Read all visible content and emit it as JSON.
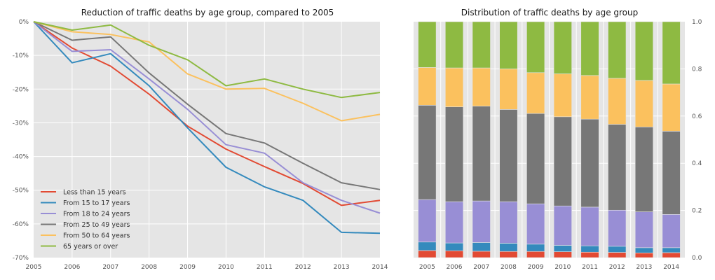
{
  "colors": {
    "plot_bg": "#e5e5e5",
    "grid": "#ffffff",
    "series": [
      "#e24a33",
      "#348abd",
      "#988ed5",
      "#777777",
      "#fbc15e",
      "#8eba42"
    ]
  },
  "chart_data": [
    {
      "type": "line",
      "title": "Reduction of traffic deaths by age group, compared to 2005",
      "x": [
        "2005",
        "2006",
        "2007",
        "2008",
        "2009",
        "2010",
        "2011",
        "2012",
        "2013",
        "2014"
      ],
      "ylim": [
        -70,
        0
      ],
      "ytick_labels": [
        "0%",
        "-10%",
        "-20%",
        "-30%",
        "-40%",
        "-50%",
        "-60%",
        "-70%"
      ],
      "grid": true,
      "legend_position": "lower-left",
      "series": [
        {
          "name": "Less than 15 years",
          "values": [
            0,
            -7.8,
            -13.2,
            -21.5,
            -31.0,
            -37.8,
            -43.0,
            -48.0,
            -54.5,
            -53.0
          ]
        },
        {
          "name": "From 15 to 17 years",
          "values": [
            0,
            -12.2,
            -9.5,
            -19.0,
            -31.5,
            -43.2,
            -49.0,
            -53.0,
            -62.5,
            -62.8
          ]
        },
        {
          "name": "From 18 to 24 years",
          "values": [
            0,
            -8.8,
            -8.3,
            -17.0,
            -26.0,
            -36.5,
            -39.0,
            -47.8,
            -53.0,
            -56.8
          ]
        },
        {
          "name": "From 25 to 49 years",
          "values": [
            0,
            -5.5,
            -4.5,
            -15.2,
            -24.5,
            -33.2,
            -36.0,
            -42.0,
            -47.8,
            -49.8
          ]
        },
        {
          "name": "From 50 to 64 years",
          "values": [
            0,
            -3.0,
            -3.8,
            -6.0,
            -15.5,
            -20.0,
            -19.8,
            -24.2,
            -29.4,
            -27.5
          ]
        },
        {
          "name": "65 years or over",
          "values": [
            0,
            -2.5,
            -1.0,
            -7.0,
            -11.3,
            -19.0,
            -17.0,
            -20.0,
            -22.5,
            -21.0
          ]
        }
      ]
    },
    {
      "type": "bar",
      "stacked": true,
      "title": "Distribution of traffic deaths by age group",
      "categories": [
        "2005",
        "2006",
        "2007",
        "2008",
        "2009",
        "2010",
        "2011",
        "2012",
        "2013",
        "2014"
      ],
      "ylim": [
        0,
        1.0
      ],
      "ytick_labels": [
        "0.0",
        "0.2",
        "0.4",
        "0.6",
        "0.8",
        "1.0"
      ],
      "y_axis_side": "right",
      "grid": true,
      "series": [
        {
          "values": [
            0.03,
            0.029,
            0.027,
            0.026,
            0.026,
            0.025,
            0.023,
            0.022,
            0.02,
            0.021
          ]
        },
        {
          "values": [
            0.036,
            0.033,
            0.037,
            0.035,
            0.031,
            0.027,
            0.027,
            0.026,
            0.022,
            0.021
          ]
        },
        {
          "values": [
            0.18,
            0.175,
            0.176,
            0.176,
            0.171,
            0.167,
            0.164,
            0.153,
            0.152,
            0.141
          ]
        },
        {
          "values": [
            0.4,
            0.402,
            0.402,
            0.391,
            0.383,
            0.378,
            0.373,
            0.364,
            0.36,
            0.353
          ]
        },
        {
          "values": [
            0.16,
            0.165,
            0.162,
            0.172,
            0.173,
            0.182,
            0.185,
            0.195,
            0.197,
            0.2
          ]
        },
        {
          "values": [
            0.194,
            0.196,
            0.196,
            0.2,
            0.216,
            0.221,
            0.228,
            0.24,
            0.249,
            0.264
          ]
        }
      ]
    }
  ]
}
